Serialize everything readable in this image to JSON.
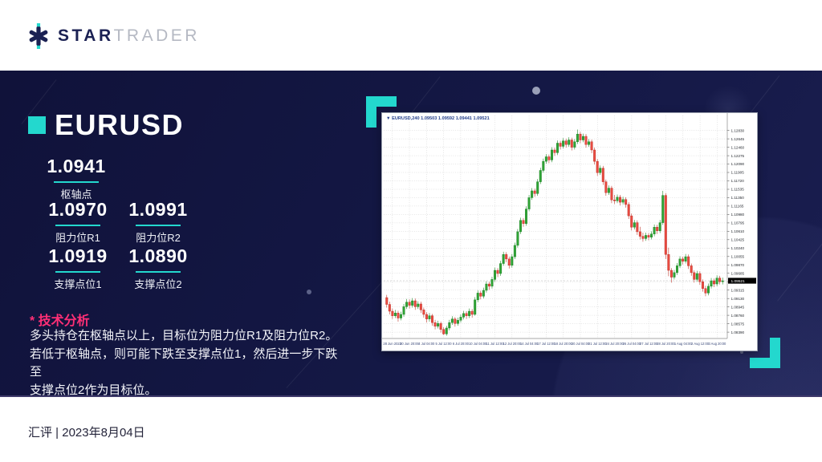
{
  "colors": {
    "accent_cyan": "#23d8ce",
    "accent_pink": "#ff2f76",
    "panel_navy": "#141845",
    "logo_navy": "#1b2153",
    "logo_gray": "#b5b9c3",
    "candle_up": "#2fa435",
    "candle_down": "#ea4b41"
  },
  "icons": {
    "logo_star": "asterisk-star-with-cyan-dots",
    "chart_title_marker": "▼"
  },
  "header": {
    "logo": {
      "word1": "STAR",
      "word2": "TRADER"
    }
  },
  "panel": {
    "symbol_title": "EURUSD",
    "pivot": {
      "value": "1.0941",
      "label": "枢轴点"
    },
    "levels": [
      {
        "value": "1.0970",
        "label": "阻力位R1"
      },
      {
        "value": "1.0991",
        "label": "阻力位R2"
      },
      {
        "value": "1.0919",
        "label": "支撑点位1"
      },
      {
        "value": "1.0890",
        "label": "支撑点位2"
      }
    ],
    "analysis": {
      "heading": "* 技术分析",
      "lines": [
        "多头持仓在枢轴点以上，目标位为阻力位R1及阻力位R2。",
        "若低于枢轴点，则可能下跌至支撑点位1，然后进一步下跌至",
        "支撑点位2作为目标位。"
      ]
    }
  },
  "footer": {
    "text": "汇评 | 2023年8月04日"
  },
  "chart_data": {
    "type": "candlestick",
    "title": "EURUSD,240 1.09503 1.09592 1.09441 1.09521",
    "symbol": "EURUSD",
    "timeframe": "H4",
    "current_price": "1.09521",
    "ylim": [
      1.0825,
      1.13
    ],
    "grid": true,
    "y_ticks": [
      "1.12830",
      "1.12645",
      "1.12460",
      "1.12275",
      "1.12090",
      "1.11905",
      "1.11720",
      "1.11535",
      "1.11350",
      "1.11165",
      "1.10980",
      "1.10795",
      "1.10610",
      "1.10425",
      "1.10240",
      "1.10055",
      "1.09870",
      "1.09685",
      "1.09500",
      "1.09315",
      "1.09130",
      "1.08945",
      "1.08760",
      "1.08575",
      "1.08390"
    ],
    "x_ticks": [
      "28 Jun 2023",
      "30 Jun 20:00",
      "4 Jul 04:00",
      "5 Jul 12:00",
      "6 Jul 20:00",
      "10 Jul 04:00",
      "11 Jul 12:00",
      "12 Jul 20:00",
      "14 Jul 04:00",
      "17 Jul 12:00",
      "18 Jul 20:00",
      "20 Jul 04:00",
      "21 Jul 12:00",
      "24 Jul 20:00",
      "26 Jul 04:00",
      "27 Jul 12:00",
      "28 Jul 20:00",
      "1 Aug 04:00",
      "2 Aug 12:00",
      "3 Aug 20:00"
    ],
    "candles": [
      [
        1.0915,
        1.0921,
        1.0893,
        1.09
      ],
      [
        1.09,
        1.0906,
        1.0878,
        1.0885
      ],
      [
        1.0885,
        1.0891,
        1.0868,
        1.0875
      ],
      [
        1.0875,
        1.0888,
        1.087,
        1.0881
      ],
      [
        1.0881,
        1.0886,
        1.0862,
        1.087
      ],
      [
        1.087,
        1.0884,
        1.0865,
        1.0878
      ],
      [
        1.0878,
        1.0901,
        1.0873,
        1.0895
      ],
      [
        1.0895,
        1.0912,
        1.089,
        1.0905
      ],
      [
        1.0905,
        1.0911,
        1.0891,
        1.0898
      ],
      [
        1.0898,
        1.0914,
        1.0893,
        1.0908
      ],
      [
        1.0908,
        1.0913,
        1.0888,
        1.0895
      ],
      [
        1.0895,
        1.0907,
        1.089,
        1.0901
      ],
      [
        1.0901,
        1.0906,
        1.0881,
        1.0888
      ],
      [
        1.0888,
        1.0893,
        1.0871,
        1.0878
      ],
      [
        1.0878,
        1.0883,
        1.086,
        1.0868
      ],
      [
        1.0868,
        1.0881,
        1.0862,
        1.0875
      ],
      [
        1.0875,
        1.0879,
        1.0853,
        1.086
      ],
      [
        1.086,
        1.0866,
        1.0845,
        1.0852
      ],
      [
        1.0852,
        1.0864,
        1.0847,
        1.0858
      ],
      [
        1.0858,
        1.0862,
        1.0838,
        1.0845
      ],
      [
        1.0845,
        1.085,
        1.0833,
        1.0835
      ],
      [
        1.0835,
        1.0853,
        1.0831,
        1.0848
      ],
      [
        1.0848,
        1.0866,
        1.0843,
        1.086
      ],
      [
        1.086,
        1.0874,
        1.0855,
        1.0868
      ],
      [
        1.0868,
        1.0872,
        1.0851,
        1.0858
      ],
      [
        1.0858,
        1.0871,
        1.0853,
        1.0865
      ],
      [
        1.0865,
        1.0878,
        1.086,
        1.0872
      ],
      [
        1.0872,
        1.0886,
        1.0867,
        1.088
      ],
      [
        1.088,
        1.0885,
        1.0868,
        1.0875
      ],
      [
        1.0875,
        1.0891,
        1.087,
        1.0885
      ],
      [
        1.0885,
        1.089,
        1.0871,
        1.0878
      ],
      [
        1.0878,
        1.0916,
        1.0875,
        1.091
      ],
      [
        1.091,
        1.0931,
        1.0905,
        1.0925
      ],
      [
        1.0925,
        1.093,
        1.0911,
        1.0918
      ],
      [
        1.0918,
        1.0937,
        1.0913,
        1.0931
      ],
      [
        1.0931,
        1.0951,
        1.0926,
        1.0945
      ],
      [
        1.0945,
        1.095,
        1.0932,
        1.094
      ],
      [
        1.094,
        1.0961,
        1.0935,
        1.0955
      ],
      [
        1.0955,
        1.0981,
        1.095,
        1.0975
      ],
      [
        1.0975,
        1.098,
        1.096,
        1.0968
      ],
      [
        1.0968,
        1.0996,
        1.0963,
        1.099
      ],
      [
        1.099,
        1.1016,
        1.0985,
        1.101
      ],
      [
        1.101,
        1.1015,
        1.0993,
        1.1
      ],
      [
        1.1,
        1.1005,
        1.0979,
        1.0986
      ],
      [
        1.0986,
        1.1011,
        1.0981,
        1.1005
      ],
      [
        1.1005,
        1.1036,
        1.1,
        1.103
      ],
      [
        1.103,
        1.1066,
        1.1025,
        1.106
      ],
      [
        1.106,
        1.1091,
        1.1055,
        1.1085
      ],
      [
        1.1085,
        1.109,
        1.1071,
        1.1078
      ],
      [
        1.1078,
        1.1116,
        1.1073,
        1.111
      ],
      [
        1.111,
        1.1141,
        1.1105,
        1.1135
      ],
      [
        1.1135,
        1.1156,
        1.113,
        1.115
      ],
      [
        1.115,
        1.1155,
        1.1137,
        1.1144
      ],
      [
        1.1144,
        1.1176,
        1.1139,
        1.117
      ],
      [
        1.117,
        1.1201,
        1.1165,
        1.1195
      ],
      [
        1.1195,
        1.1221,
        1.119,
        1.1215
      ],
      [
        1.1215,
        1.1231,
        1.121,
        1.1225
      ],
      [
        1.1225,
        1.123,
        1.1211,
        1.1218
      ],
      [
        1.1218,
        1.1246,
        1.1213,
        1.124
      ],
      [
        1.124,
        1.1245,
        1.1227,
        1.1234
      ],
      [
        1.1234,
        1.1261,
        1.1229,
        1.1255
      ],
      [
        1.1255,
        1.126,
        1.1241,
        1.1248
      ],
      [
        1.1248,
        1.1266,
        1.1243,
        1.126
      ],
      [
        1.126,
        1.1265,
        1.1245,
        1.1252
      ],
      [
        1.1252,
        1.1268,
        1.1247,
        1.1262
      ],
      [
        1.1262,
        1.1267,
        1.1239,
        1.1246
      ],
      [
        1.1246,
        1.1264,
        1.1241,
        1.1258
      ],
      [
        1.1258,
        1.1285,
        1.1253,
        1.1275
      ],
      [
        1.1275,
        1.128,
        1.1255,
        1.1262
      ],
      [
        1.1262,
        1.1276,
        1.1257,
        1.127
      ],
      [
        1.127,
        1.1275,
        1.1245,
        1.1252
      ],
      [
        1.1252,
        1.1264,
        1.1247,
        1.1258
      ],
      [
        1.1258,
        1.1263,
        1.1233,
        1.124
      ],
      [
        1.124,
        1.1245,
        1.1208,
        1.1215
      ],
      [
        1.1215,
        1.122,
        1.1183,
        1.119
      ],
      [
        1.119,
        1.1206,
        1.1185,
        1.12
      ],
      [
        1.12,
        1.1205,
        1.1163,
        1.117
      ],
      [
        1.117,
        1.1175,
        1.1139,
        1.1146
      ],
      [
        1.1146,
        1.1162,
        1.1141,
        1.1156
      ],
      [
        1.1156,
        1.1161,
        1.1123,
        1.113
      ],
      [
        1.113,
        1.1141,
        1.1121,
        1.1128
      ],
      [
        1.1128,
        1.1142,
        1.1123,
        1.1136
      ],
      [
        1.1136,
        1.1141,
        1.1118,
        1.1125
      ],
      [
        1.1125,
        1.1137,
        1.112,
        1.1131
      ],
      [
        1.1131,
        1.1136,
        1.1113,
        1.112
      ],
      [
        1.112,
        1.1125,
        1.1088,
        1.1095
      ],
      [
        1.1095,
        1.11,
        1.1063,
        1.107
      ],
      [
        1.107,
        1.1086,
        1.1065,
        1.108
      ],
      [
        1.108,
        1.1085,
        1.1053,
        1.106
      ],
      [
        1.106,
        1.1071,
        1.1043,
        1.105
      ],
      [
        1.105,
        1.1058,
        1.1038,
        1.1045
      ],
      [
        1.1045,
        1.1058,
        1.104,
        1.1052
      ],
      [
        1.1052,
        1.1057,
        1.1041,
        1.1048
      ],
      [
        1.1048,
        1.1061,
        1.1043,
        1.1055
      ],
      [
        1.1055,
        1.1076,
        1.105,
        1.107
      ],
      [
        1.107,
        1.1075,
        1.1055,
        1.1062
      ],
      [
        1.1062,
        1.1086,
        1.1057,
        1.108
      ],
      [
        1.108,
        1.115,
        1.1075,
        1.114
      ],
      [
        1.114,
        1.1145,
        1.1,
        1.101
      ],
      [
        1.101,
        1.1025,
        1.0962,
        1.0975
      ],
      [
        1.0975,
        1.098,
        1.0948,
        1.096
      ],
      [
        1.096,
        1.0976,
        1.0955,
        1.097
      ],
      [
        1.097,
        1.0991,
        1.0965,
        1.0985
      ],
      [
        1.0985,
        1.1006,
        1.098,
        1.1
      ],
      [
        1.1,
        1.1005,
        1.0988,
        1.0995
      ],
      [
        1.0995,
        1.1011,
        1.099,
        1.1005
      ],
      [
        1.1005,
        1.101,
        1.0978,
        1.0985
      ],
      [
        1.0985,
        1.099,
        1.0963,
        1.097
      ],
      [
        1.097,
        1.0975,
        1.0948,
        1.0955
      ],
      [
        1.0955,
        1.0974,
        1.095,
        1.0968
      ],
      [
        1.0968,
        1.0973,
        1.0943,
        1.095
      ],
      [
        1.095,
        1.0955,
        1.0928,
        1.0935
      ],
      [
        1.0935,
        1.0941,
        1.0918,
        1.0925
      ],
      [
        1.0925,
        1.0946,
        1.092,
        1.094
      ],
      [
        1.094,
        1.0958,
        1.0935,
        1.0952
      ],
      [
        1.0952,
        1.0957,
        1.0938,
        1.0945
      ],
      [
        1.0945,
        1.0964,
        1.094,
        1.0958
      ],
      [
        1.0958,
        1.0963,
        1.0944,
        1.095
      ],
      [
        1.095,
        1.0959,
        1.0944,
        1.0952
      ]
    ],
    "legend_position": "none",
    "background": "#ffffff"
  }
}
